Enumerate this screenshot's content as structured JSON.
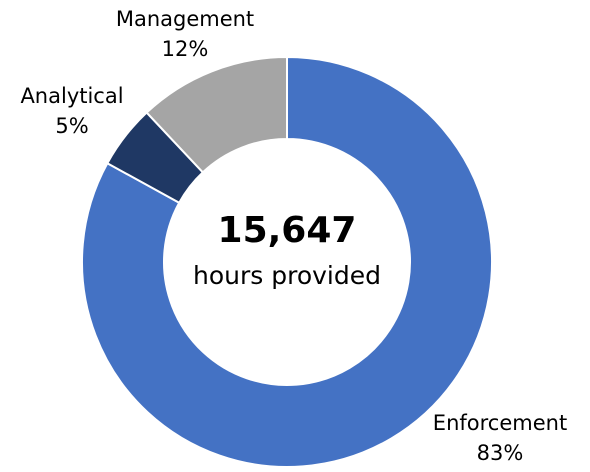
{
  "chart_data": {
    "type": "donut",
    "center_title": "15,647",
    "center_subtitle": "hours provided",
    "categories": [
      "Enforcement",
      "Analytical",
      "Management"
    ],
    "values": [
      83,
      5,
      12
    ],
    "value_labels": [
      "83%",
      "5%",
      "12%"
    ],
    "colors": [
      "#4472c4",
      "#1f3864",
      "#a5a5a5"
    ]
  }
}
